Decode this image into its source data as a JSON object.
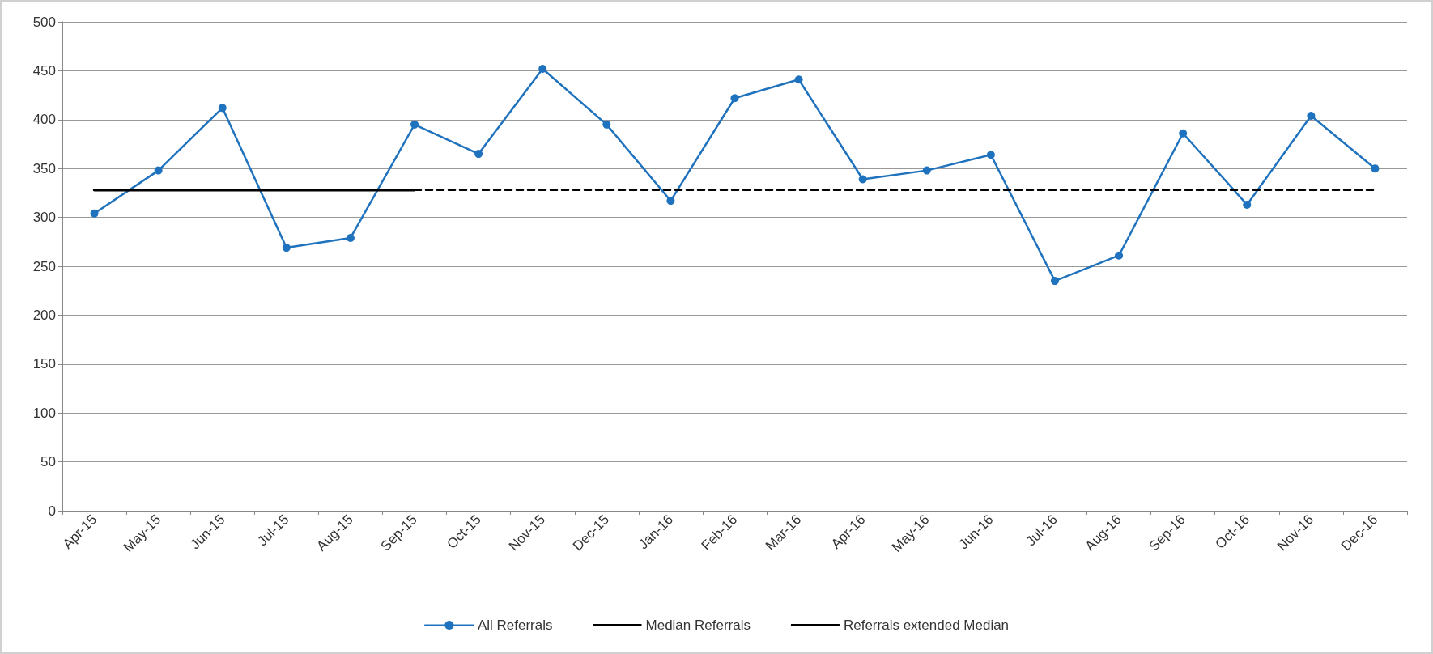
{
  "chart_data": {
    "type": "line",
    "categories": [
      "Apr-15",
      "May-15",
      "Jun-15",
      "Jul-15",
      "Aug-15",
      "Sep-15",
      "Oct-15",
      "Nov-15",
      "Dec-15",
      "Jan-16",
      "Feb-16",
      "Mar-16",
      "Apr-16",
      "May-16",
      "Jun-16",
      "Jul-16",
      "Aug-16",
      "Sep-16",
      "Oct-16",
      "Nov-16",
      "Dec-16"
    ],
    "series": [
      {
        "name": "All Referrals",
        "color": "#1f72bd",
        "marker": "circle",
        "line_style": "solid",
        "values": [
          304,
          348,
          412,
          269,
          279,
          395,
          365,
          452,
          395,
          317,
          422,
          441,
          339,
          348,
          364,
          235,
          261,
          386,
          313,
          404,
          350
        ]
      },
      {
        "name": "Median Referrals",
        "color": "#000000",
        "marker": "none",
        "line_style": "solid",
        "values": [
          328,
          328,
          328,
          328,
          328,
          328,
          null,
          null,
          null,
          null,
          null,
          null,
          null,
          null,
          null,
          null,
          null,
          null,
          null,
          null,
          null
        ]
      },
      {
        "name": "Referrals extended Median",
        "color": "#000000",
        "marker": "none",
        "line_style": "dashed",
        "values": [
          null,
          null,
          null,
          null,
          null,
          328,
          328,
          328,
          328,
          328,
          328,
          328,
          328,
          328,
          328,
          328,
          328,
          328,
          328,
          328,
          328
        ]
      }
    ],
    "ylim": [
      0,
      500
    ],
    "yticks": [
      0,
      50,
      100,
      150,
      200,
      250,
      300,
      350,
      400,
      450,
      500
    ],
    "grid": "y",
    "legend": "bottom"
  }
}
